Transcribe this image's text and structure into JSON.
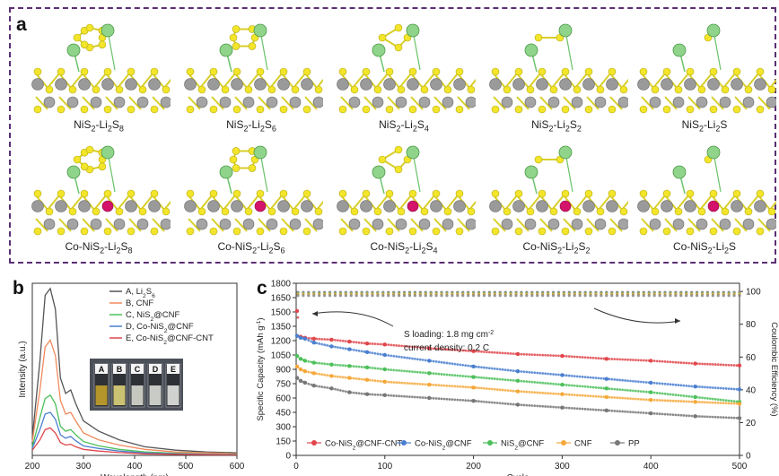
{
  "panel_a": {
    "label": "a",
    "row1": [
      {
        "base": "NiS",
        "s1": "2",
        "mid": "-Li",
        "s2": "2",
        "end": "S",
        "s3": "8"
      },
      {
        "base": "NiS",
        "s1": "2",
        "mid": "-Li",
        "s2": "2",
        "end": "S",
        "s3": "6"
      },
      {
        "base": "NiS",
        "s1": "2",
        "mid": "-Li",
        "s2": "2",
        "end": "S",
        "s3": "4"
      },
      {
        "base": "NiS",
        "s1": "2",
        "mid": "-Li",
        "s2": "2",
        "end": "S",
        "s3": "2"
      },
      {
        "base": "NiS",
        "s1": "2",
        "mid": "-Li",
        "s2": "2",
        "end": "S",
        "s3": ""
      }
    ],
    "row2": [
      {
        "base": "Co-NiS",
        "s1": "2",
        "mid": "-Li",
        "s2": "2",
        "end": "S",
        "s3": "8"
      },
      {
        "base": "Co-NiS",
        "s1": "2",
        "mid": "-Li",
        "s2": "2",
        "end": "S",
        "s3": "6"
      },
      {
        "base": "Co-NiS",
        "s1": "2",
        "mid": "-Li",
        "s2": "2",
        "end": "S",
        "s3": "4"
      },
      {
        "base": "Co-NiS",
        "s1": "2",
        "mid": "-Li",
        "s2": "2",
        "end": "S",
        "s3": "2"
      },
      {
        "base": "Co-NiS",
        "s1": "2",
        "mid": "-Li",
        "s2": "2",
        "end": "S",
        "s3": ""
      }
    ]
  },
  "panel_b": {
    "label": "b",
    "vial_labels": [
      "A",
      "B",
      "C",
      "D",
      "E"
    ],
    "colors": {
      "A": "#555555",
      "B": "#f08a5d",
      "C": "#4cbf5a",
      "D": "#4a7fd0",
      "E": "#e0474c"
    }
  },
  "panel_c": {
    "label": "c",
    "annotation_1_pre": "S loading: 1.8 mg cm",
    "annotation_1_sup": "-2",
    "annotation_2": "current density: 0.2 C"
  },
  "chart_data": [
    {
      "type": "line",
      "panel": "b",
      "xlabel": "Wavelength (nm)",
      "ylabel": "Intensity (a.u.)",
      "xlim": [
        200,
        600
      ],
      "xticks": [
        200,
        300,
        400,
        500,
        600
      ],
      "x": [
        200,
        215,
        225,
        235,
        245,
        255,
        265,
        275,
        285,
        300,
        330,
        370,
        420,
        480,
        540,
        600
      ],
      "series": [
        {
          "name": "A, Li2S6",
          "legend": {
            "pre": "A, Li",
            "s1": "2",
            "mid": "S",
            "s2": "6"
          },
          "color": "#555555",
          "values": [
            0.1,
            0.55,
            0.93,
            0.97,
            0.85,
            0.45,
            0.36,
            0.38,
            0.3,
            0.2,
            0.14,
            0.09,
            0.05,
            0.03,
            0.02,
            0.015
          ]
        },
        {
          "name": "B, CNF",
          "legend": {
            "pre": "B, CNF",
            "s1": "",
            "mid": "",
            "s2": ""
          },
          "color": "#f08a5d",
          "values": [
            0.08,
            0.38,
            0.63,
            0.67,
            0.58,
            0.32,
            0.24,
            0.25,
            0.2,
            0.13,
            0.09,
            0.06,
            0.035,
            0.02,
            0.015,
            0.01
          ]
        },
        {
          "name": "C, NiS2@CNF",
          "legend": {
            "pre": "C, NiS",
            "s1": "2",
            "mid": "@CNF",
            "s2": ""
          },
          "color": "#4cbf5a",
          "values": [
            0.05,
            0.22,
            0.33,
            0.35,
            0.3,
            0.17,
            0.14,
            0.15,
            0.12,
            0.08,
            0.055,
            0.035,
            0.02,
            0.012,
            0.008,
            0.006
          ]
        },
        {
          "name": "D, Co-NiS2@CNF",
          "legend": {
            "pre": "D, Co-NiS",
            "s1": "2",
            "mid": "@CNF",
            "s2": ""
          },
          "color": "#4a7fd0",
          "values": [
            0.04,
            0.15,
            0.24,
            0.25,
            0.21,
            0.12,
            0.1,
            0.11,
            0.085,
            0.055,
            0.04,
            0.025,
            0.014,
            0.009,
            0.006,
            0.004
          ]
        },
        {
          "name": "E, Co-NiS2@CNF-CNT",
          "legend": {
            "pre": "E, Co-NiS",
            "s1": "2",
            "mid": "@CNF-CNT",
            "s2": ""
          },
          "color": "#e0474c",
          "values": [
            0.03,
            0.09,
            0.15,
            0.16,
            0.13,
            0.075,
            0.06,
            0.065,
            0.05,
            0.035,
            0.025,
            0.016,
            0.009,
            0.006,
            0.004,
            0.003
          ]
        }
      ]
    },
    {
      "type": "scatter",
      "panel": "c",
      "xlabel": "Cycle",
      "ylabel": "Specific Capacity (mAh g-1)",
      "ylabel_parts": {
        "pre": "Specific Capacity (mAh g",
        "sup": "-1",
        "post": ")"
      },
      "y2label": "Coulombic Efficiency (%)",
      "xlim": [
        0,
        500
      ],
      "ylim": [
        0,
        1800
      ],
      "y2lim": [
        0,
        105
      ],
      "xticks": [
        0,
        100,
        200,
        300,
        400,
        500
      ],
      "yticks": [
        0,
        150,
        300,
        450,
        600,
        750,
        900,
        1050,
        1200,
        1350,
        1500,
        1650,
        1800
      ],
      "y2ticks": [
        0,
        20,
        40,
        60,
        80,
        100
      ],
      "x": [
        1,
        5,
        10,
        20,
        40,
        60,
        80,
        100,
        150,
        200,
        250,
        300,
        350,
        400,
        450,
        500
      ],
      "series": [
        {
          "name": "Co-NiS2@CNF-CNT",
          "legend": {
            "pre": "Co-NiS",
            "s1": "2",
            "post": "@CNF-CNT"
          },
          "color": "#e0474c",
          "values": [
            1510,
            1240,
            1230,
            1220,
            1210,
            1190,
            1170,
            1160,
            1120,
            1090,
            1060,
            1040,
            1010,
            990,
            960,
            940
          ]
        },
        {
          "name": "Co-NiS2@CNF",
          "legend": {
            "pre": "Co-NiS",
            "s1": "2",
            "post": "@CNF"
          },
          "color": "#4a7fd0",
          "values": [
            1250,
            1230,
            1220,
            1180,
            1140,
            1110,
            1080,
            1050,
            990,
            930,
            880,
            840,
            800,
            760,
            720,
            690
          ]
        },
        {
          "name": "NiS2@CNF",
          "legend": {
            "pre": "NiS",
            "s1": "2",
            "post": "@CNF"
          },
          "color": "#4cbf5a",
          "values": [
            1040,
            1010,
            990,
            970,
            950,
            935,
            920,
            900,
            860,
            820,
            780,
            740,
            700,
            660,
            610,
            560
          ]
        },
        {
          "name": "CNF",
          "legend": {
            "pre": "CNF",
            "s1": "",
            "post": ""
          },
          "color": "#f5a83a",
          "values": [
            930,
            900,
            880,
            860,
            830,
            810,
            790,
            770,
            740,
            710,
            670,
            640,
            610,
            580,
            560,
            540
          ]
        },
        {
          "name": "PP",
          "legend": {
            "pre": "PP",
            "s1": "",
            "post": ""
          },
          "color": "#777777",
          "values": [
            810,
            780,
            760,
            730,
            700,
            660,
            640,
            630,
            600,
            570,
            530,
            500,
            470,
            440,
            410,
            390
          ]
        }
      ],
      "efficiency_pct": {
        "Co-NiS2@CNF-CNT": 99.5,
        "Co-NiS2@CNF": 99.3,
        "NiS2@CNF": 99.0,
        "CNF": 98.5,
        "PP": 97.5
      }
    }
  ]
}
